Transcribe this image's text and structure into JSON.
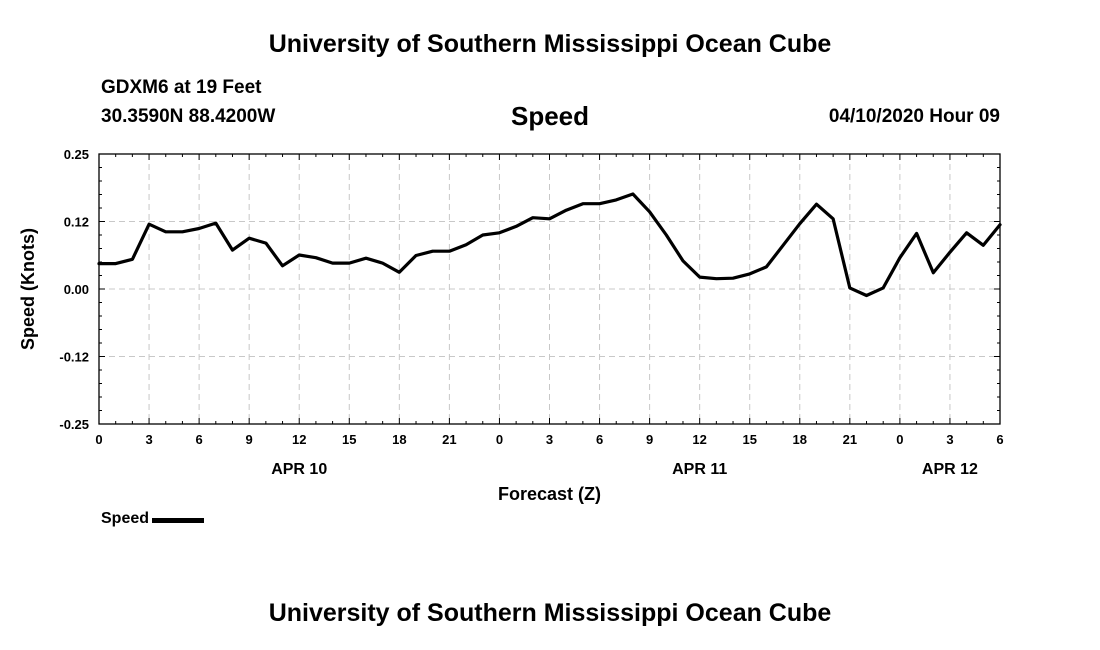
{
  "header": {
    "title": "University of Southern Mississippi Ocean Cube",
    "station": "GDXM6 at 19 Feet",
    "coords": "30.3590N 88.4200W",
    "variable": "Speed",
    "datetime": "04/10/2020 Hour 09"
  },
  "footer": {
    "title": "University of Southern Mississippi Ocean Cube"
  },
  "legend": {
    "label": "Speed",
    "color": "#000000"
  },
  "chart_data": {
    "type": "line",
    "title": "Speed",
    "xlabel": "Forecast (Z)",
    "ylabel": "Speed (Knots)",
    "ylim": [
      -0.25,
      0.25
    ],
    "xlim": [
      0,
      54
    ],
    "grid": true,
    "y_ticks": [
      "0.25",
      "0.12",
      "0.00",
      "-0.12",
      "-0.25"
    ],
    "y_tick_values": [
      0.25,
      0.125,
      0.0,
      -0.125,
      -0.25
    ],
    "x_ticks": [
      "0",
      "3",
      "6",
      "9",
      "12",
      "15",
      "18",
      "21",
      "0",
      "3",
      "6",
      "9",
      "12",
      "15",
      "18",
      "21",
      "0",
      "3",
      "6"
    ],
    "date_labels": [
      {
        "label": "APR 10",
        "hour": 12
      },
      {
        "label": "APR 11",
        "hour": 36
      },
      {
        "label": "APR 12",
        "hour": 51
      }
    ],
    "series": [
      {
        "name": "Speed",
        "color": "#000000",
        "x": [
          0,
          1,
          2,
          3,
          4,
          5,
          6,
          7,
          8,
          9,
          10,
          11,
          12,
          13,
          14,
          15,
          16,
          17,
          18,
          19,
          20,
          21,
          22,
          23,
          24,
          25,
          26,
          27,
          28,
          29,
          30,
          31,
          32,
          33,
          34,
          35,
          36,
          37,
          38,
          39,
          40,
          41,
          42,
          43,
          44,
          45,
          46,
          47,
          48,
          49,
          50,
          51,
          52,
          53,
          54
        ],
        "values": [
          0.047,
          0.047,
          0.055,
          0.12,
          0.106,
          0.106,
          0.112,
          0.122,
          0.072,
          0.094,
          0.085,
          0.043,
          0.063,
          0.058,
          0.048,
          0.048,
          0.057,
          0.048,
          0.031,
          0.062,
          0.07,
          0.07,
          0.082,
          0.1,
          0.104,
          0.116,
          0.132,
          0.13,
          0.146,
          0.158,
          0.158,
          0.165,
          0.176,
          0.143,
          0.1,
          0.052,
          0.022,
          0.019,
          0.02,
          0.028,
          0.041,
          0.081,
          0.121,
          0.157,
          0.13,
          0.002,
          -0.012,
          0.002,
          0.058,
          0.103,
          0.03,
          0.068,
          0.104,
          0.081,
          0.119
        ]
      }
    ]
  }
}
